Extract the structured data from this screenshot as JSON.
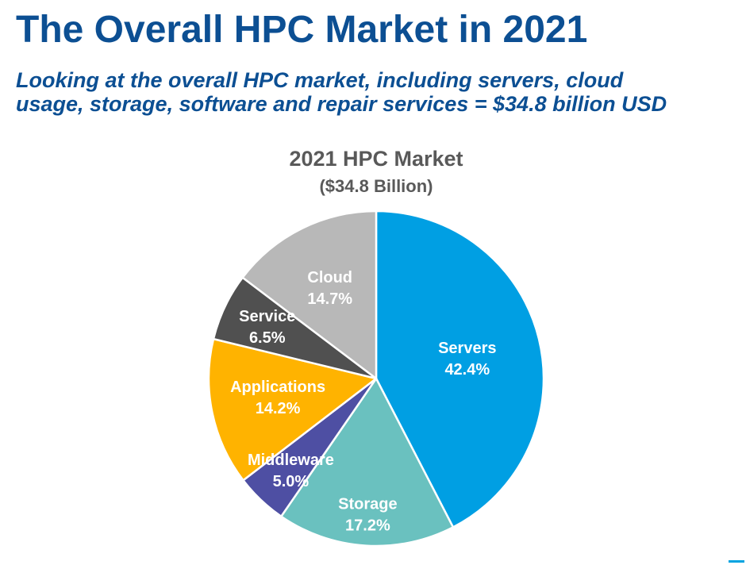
{
  "slide": {
    "title": "The Overall HPC Market in 2021",
    "subtitle_line1": "Looking at the overall HPC market, including servers, cloud",
    "subtitle_line2": "usage, storage, software and repair services = $34.8 billion USD"
  },
  "colors": {
    "title": "#0c4f93",
    "chart_title": "#595959",
    "label": "#ffffff"
  },
  "chart_data": {
    "type": "pie",
    "title": "2021 HPC Market",
    "subtitle": "($34.8 Billion)",
    "start": "12 o'clock",
    "direction": "clockwise",
    "slices": [
      {
        "name": "Servers",
        "value": 42.4,
        "label": "42.4%",
        "color": "#009fe3"
      },
      {
        "name": "Storage",
        "value": 17.2,
        "label": "17.2%",
        "color": "#6ac1bf"
      },
      {
        "name": "Middleware",
        "value": 5.0,
        "label": "5.0%",
        "color": "#4e4fa3"
      },
      {
        "name": "Applications",
        "value": 14.2,
        "label": "14.2%",
        "color": "#ffb300"
      },
      {
        "name": "Service",
        "value": 6.5,
        "label": "6.5%",
        "color": "#505050"
      },
      {
        "name": "Cloud",
        "value": 14.7,
        "label": "14.7%",
        "color": "#b8b8b8"
      }
    ]
  }
}
